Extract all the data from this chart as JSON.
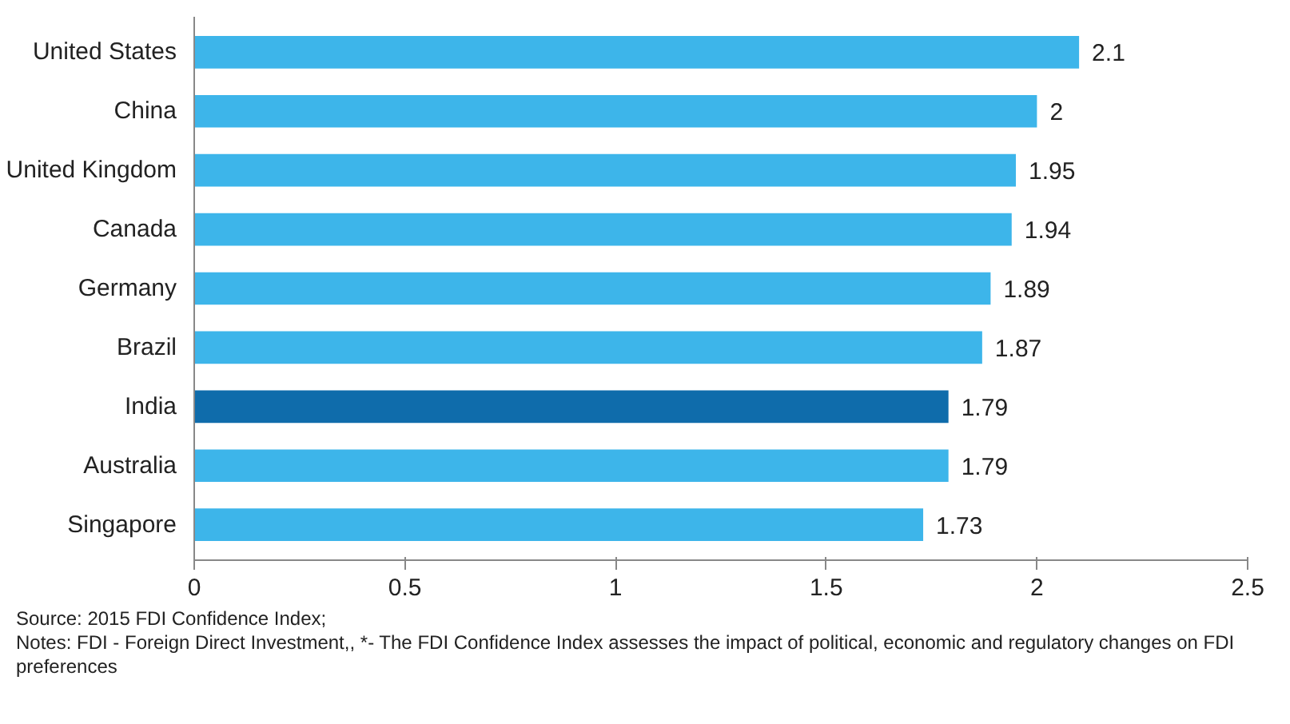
{
  "chart_data": {
    "type": "bar",
    "orientation": "horizontal",
    "categories": [
      "United States",
      "China",
      "United Kingdom",
      "Canada",
      "Germany",
      "Brazil",
      "India",
      "Australia",
      "Singapore"
    ],
    "values": [
      2.1,
      2,
      1.95,
      1.94,
      1.89,
      1.87,
      1.79,
      1.79,
      1.73
    ],
    "colors": [
      "#3db5ea",
      "#3db5ea",
      "#3db5ea",
      "#3db5ea",
      "#3db5ea",
      "#3db5ea",
      "#0f6cab",
      "#3db5ea",
      "#3db5ea"
    ],
    "xlim": [
      0,
      2.5
    ],
    "xticks": [
      0,
      0.5,
      1,
      1.5,
      2,
      2.5
    ],
    "grid": false,
    "data_labels": true,
    "annotations": [
      "Source: 2015 FDI Confidence Index;",
      "Notes: FDI - Foreign Direct Investment,, *- The FDI Confidence Index assesses the impact of political, economic and regulatory changes on FDI preferences"
    ]
  }
}
